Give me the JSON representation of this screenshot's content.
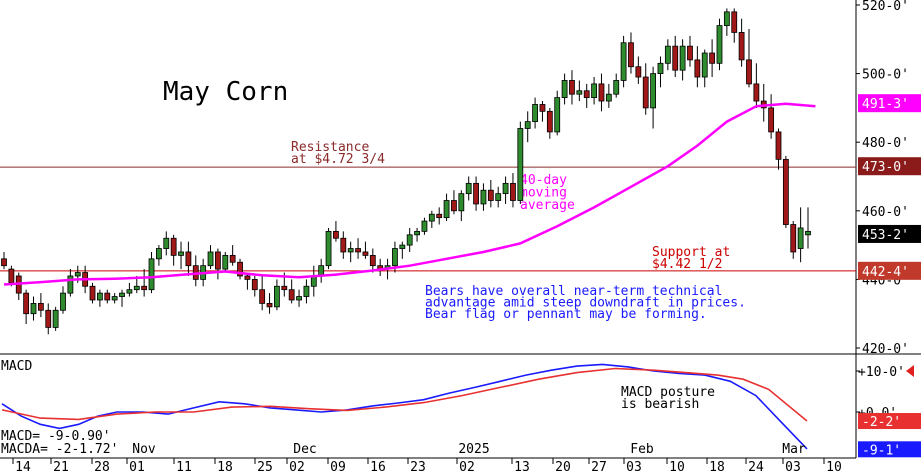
{
  "chart_data": [
    {
      "type": "candlestick",
      "title": "May Corn",
      "ylim": [
        414,
        522
      ],
      "y_ticks": [
        {
          "v": 520,
          "label": "520-0'"
        },
        {
          "v": 500,
          "label": "500-0'"
        },
        {
          "v": 480,
          "label": "480-0'"
        },
        {
          "v": 460,
          "label": "460-0'"
        },
        {
          "v": 440,
          "label": "440-0'"
        },
        {
          "v": 420,
          "label": "420-0'"
        }
      ],
      "price_tags": [
        {
          "v": 491.375,
          "label": "491-3'",
          "color": "#ff00ff"
        },
        {
          "v": 473.0,
          "label": "473-0'",
          "color": "#8b1a1a"
        },
        {
          "v": 453.25,
          "label": "453-2'",
          "color": "#000000"
        },
        {
          "v": 442.5,
          "label": "442-4'",
          "color": "#c0392b"
        }
      ],
      "resistance": {
        "value": 472.75,
        "label1": "Resistance",
        "label2": "at $4.72 3/4",
        "color": "#8b2a2a"
      },
      "support": {
        "value": 442.5,
        "label1": "Support at",
        "label2": "$4.42 1/2",
        "color": "#cc0000"
      },
      "ma_label": [
        "40-day",
        "moving",
        "average"
      ],
      "ma_color": "#ff00ff",
      "commentary": [
        "Bears have overall near-term technical",
        "advantage amid steep downdraft in prices.",
        "Bear flag or pennant may be forming."
      ],
      "candles": [
        [
          446,
          448,
          443,
          444
        ],
        [
          443,
          444,
          438,
          439
        ],
        [
          441,
          442,
          434,
          436
        ],
        [
          436,
          437,
          427,
          430
        ],
        [
          430,
          435,
          428,
          433
        ],
        [
          433,
          436,
          429,
          431
        ],
        [
          431,
          433,
          424,
          426
        ],
        [
          426,
          432,
          425,
          431
        ],
        [
          431,
          438,
          430,
          436
        ],
        [
          436,
          443,
          435,
          441
        ],
        [
          441,
          444,
          439,
          442
        ],
        [
          442,
          444,
          436,
          438
        ],
        [
          438,
          439,
          433,
          434
        ],
        [
          434,
          437,
          432,
          436
        ],
        [
          436,
          437,
          433,
          434
        ],
        [
          434,
          436,
          433,
          435
        ],
        [
          435,
          437,
          432,
          436
        ],
        [
          436,
          439,
          435,
          437
        ],
        [
          437,
          441,
          436,
          438
        ],
        [
          438,
          443,
          435,
          437
        ],
        [
          437,
          448,
          436,
          446
        ],
        [
          446,
          450,
          444,
          449
        ],
        [
          449,
          454,
          447,
          452
        ],
        [
          452,
          453,
          444,
          447
        ],
        [
          447,
          451,
          443,
          448
        ],
        [
          448,
          451,
          441,
          444
        ],
        [
          444,
          447,
          438,
          440
        ],
        [
          440,
          446,
          438,
          444
        ],
        [
          444,
          450,
          443,
          448
        ],
        [
          448,
          449,
          440,
          443
        ],
        [
          443,
          448,
          442,
          447
        ],
        [
          447,
          450,
          444,
          445
        ],
        [
          445,
          446,
          440,
          441
        ],
        [
          441,
          442,
          437,
          440
        ],
        [
          440,
          441,
          435,
          437
        ],
        [
          437,
          441,
          431,
          433
        ],
        [
          433,
          436,
          430,
          432
        ],
        [
          432,
          440,
          431,
          438
        ],
        [
          438,
          442,
          435,
          437
        ],
        [
          437,
          440,
          433,
          434
        ],
        [
          434,
          437,
          432,
          435
        ],
        [
          435,
          440,
          433,
          438
        ],
        [
          438,
          444,
          435,
          441
        ],
        [
          441,
          446,
          439,
          444
        ],
        [
          444,
          455,
          443,
          454
        ],
        [
          454,
          457,
          451,
          452
        ],
        [
          452,
          454,
          446,
          448
        ],
        [
          448,
          451,
          445,
          449
        ],
        [
          449,
          452,
          446,
          448
        ],
        [
          448,
          451,
          446,
          447
        ],
        [
          447,
          449,
          442,
          444
        ],
        [
          444,
          446,
          441,
          443
        ],
        [
          443,
          446,
          440,
          444
        ],
        [
          444,
          451,
          442,
          449
        ],
        [
          449,
          451,
          446,
          450
        ],
        [
          450,
          455,
          448,
          453
        ],
        [
          453,
          455,
          451,
          454
        ],
        [
          454,
          458,
          453,
          457
        ],
        [
          457,
          460,
          455,
          459
        ],
        [
          459,
          461,
          456,
          458
        ],
        [
          458,
          465,
          457,
          463
        ],
        [
          463,
          466,
          459,
          460
        ],
        [
          460,
          466,
          457,
          465
        ],
        [
          465,
          470,
          463,
          468
        ],
        [
          468,
          470,
          460,
          462
        ],
        [
          462,
          468,
          460,
          466
        ],
        [
          466,
          469,
          461,
          463
        ],
        [
          463,
          467,
          461,
          465
        ],
        [
          465,
          470,
          462,
          468
        ],
        [
          468,
          471,
          461,
          463
        ],
        [
          463,
          486,
          462,
          484
        ],
        [
          484,
          489,
          480,
          486
        ],
        [
          486,
          493,
          484,
          491
        ],
        [
          491,
          492,
          486,
          489
        ],
        [
          489,
          490,
          481,
          483
        ],
        [
          483,
          495,
          482,
          493
        ],
        [
          493,
          500,
          491,
          498
        ],
        [
          498,
          501,
          491,
          494
        ],
        [
          494,
          498,
          492,
          495
        ],
        [
          495,
          497,
          490,
          493
        ],
        [
          493,
          499,
          491,
          497
        ],
        [
          497,
          500,
          489,
          492
        ],
        [
          492,
          497,
          490,
          494
        ],
        [
          494,
          500,
          493,
          498
        ],
        [
          498,
          511,
          496,
          509
        ],
        [
          509,
          512,
          500,
          502
        ],
        [
          502,
          505,
          497,
          499
        ],
        [
          499,
          503,
          488,
          490
        ],
        [
          490,
          502,
          484,
          500
        ],
        [
          500,
          505,
          496,
          503
        ],
        [
          503,
          510,
          501,
          508
        ],
        [
          508,
          511,
          499,
          501
        ],
        [
          501,
          510,
          498,
          508
        ],
        [
          508,
          511,
          502,
          504
        ],
        [
          504,
          508,
          496,
          499
        ],
        [
          499,
          507,
          496,
          506
        ],
        [
          506,
          510,
          499,
          503
        ],
        [
          503,
          516,
          501,
          514
        ],
        [
          514,
          519,
          511,
          518
        ],
        [
          518,
          519,
          509,
          512
        ],
        [
          512,
          516,
          502,
          504
        ],
        [
          504,
          513,
          496,
          497
        ],
        [
          497,
          503,
          490,
          492
        ],
        [
          492,
          497,
          486,
          490
        ],
        [
          490,
          494,
          481,
          483
        ],
        [
          483,
          484,
          472,
          475
        ],
        [
          475,
          476,
          455,
          456
        ],
        [
          456,
          457,
          446,
          448
        ],
        [
          449,
          461,
          445,
          455
        ],
        [
          453,
          461,
          449,
          454
        ]
      ],
      "ma": [
        [
          0,
          438.5
        ],
        [
          5,
          439.2
        ],
        [
          10,
          440.0
        ],
        [
          15,
          440.2
        ],
        [
          20,
          440.6
        ],
        [
          25,
          441.5
        ],
        [
          30,
          442.3
        ],
        [
          35,
          441.2
        ],
        [
          40,
          440.6
        ],
        [
          45,
          441.4
        ],
        [
          50,
          442.6
        ],
        [
          55,
          444.0
        ],
        [
          60,
          446.0
        ],
        [
          65,
          448.0
        ],
        [
          70,
          450.5
        ],
        [
          75,
          455.5
        ],
        [
          80,
          461.0
        ],
        [
          85,
          467.0
        ],
        [
          90,
          473.0
        ],
        [
          94,
          479.0
        ],
        [
          98,
          486.0
        ],
        [
          102,
          490.5
        ],
        [
          106,
          491.2
        ],
        [
          110,
          490.5
        ]
      ]
    },
    {
      "type": "line",
      "title": "MACD",
      "ylim": [
        -13,
        13
      ],
      "y_ticks": [
        {
          "v": 10,
          "label": "+10-0'"
        },
        {
          "v": 0,
          "label": "+0-0'"
        }
      ],
      "readouts": [
        "MACD= -9-0.90'",
        "MACDA= -2-1.72'"
      ],
      "tags": [
        {
          "v": -2.2,
          "label": "-2-2'",
          "color": "#e83030"
        },
        {
          "v": -9.1,
          "label": "-9-1'",
          "color": "#1a1aff"
        }
      ],
      "annotation": [
        "MACD posture",
        "is bearish"
      ],
      "series": [
        {
          "name": "MACD",
          "color": "#1a1aff",
          "values": [
            [
              0,
              2
            ],
            [
              3,
              -1
            ],
            [
              6,
              -3
            ],
            [
              9,
              -4
            ],
            [
              12,
              -3
            ],
            [
              15,
              -1
            ],
            [
              18,
              0
            ],
            [
              22,
              0
            ],
            [
              26,
              -0.5
            ],
            [
              30,
              1
            ],
            [
              34,
              2.5
            ],
            [
              38,
              2
            ],
            [
              42,
              1
            ],
            [
              46,
              0.5
            ],
            [
              50,
              0
            ],
            [
              54,
              0.5
            ],
            [
              58,
              1.5
            ],
            [
              62,
              2.2
            ],
            [
              66,
              3.0
            ],
            [
              70,
              4.6
            ],
            [
              74,
              6
            ],
            [
              78,
              7.5
            ],
            [
              82,
              9
            ],
            [
              86,
              10.2
            ],
            [
              90,
              11.2
            ],
            [
              94,
              11.6
            ],
            [
              98,
              11.0
            ],
            [
              102,
              10.0
            ],
            [
              106,
              9.4
            ],
            [
              110,
              9.0
            ],
            [
              114,
              7.5
            ],
            [
              118,
              4.0
            ],
            [
              122,
              -2.5
            ],
            [
              126,
              -9.0
            ]
          ]
        },
        {
          "name": "MACDA",
          "color": "#e83030",
          "values": [
            [
              0,
              0.5
            ],
            [
              6,
              -1.5
            ],
            [
              12,
              -1.8
            ],
            [
              18,
              -0.5
            ],
            [
              24,
              0
            ],
            [
              30,
              0
            ],
            [
              36,
              1.2
            ],
            [
              42,
              1.4
            ],
            [
              48,
              0.8
            ],
            [
              54,
              0.4
            ],
            [
              60,
              1.2
            ],
            [
              66,
              2.3
            ],
            [
              72,
              4.0
            ],
            [
              78,
              6.0
            ],
            [
              84,
              8.0
            ],
            [
              90,
              9.6
            ],
            [
              96,
              10.6
            ],
            [
              102,
              10.2
            ],
            [
              108,
              9.5
            ],
            [
              112,
              9.0
            ],
            [
              116,
              8.0
            ],
            [
              120,
              5.5
            ],
            [
              126,
              -2.2
            ]
          ]
        }
      ]
    }
  ],
  "x_axis": {
    "dates": [
      "14",
      "21",
      "28",
      "01",
      "11",
      "18",
      "25",
      "02",
      "09",
      "16",
      "23",
      "02",
      "13",
      "20",
      "27",
      "03",
      "10",
      "18",
      "24",
      "03",
      "10"
    ],
    "months": [
      "Nov",
      "Dec",
      "2025",
      "Feb",
      "Mar"
    ]
  }
}
